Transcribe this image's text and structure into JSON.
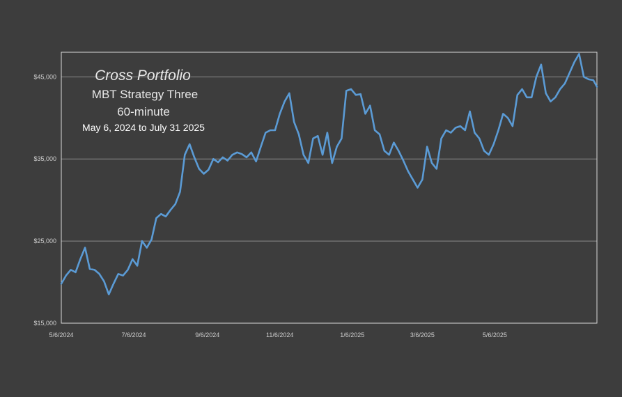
{
  "chart_data": {
    "type": "line",
    "title": "Cross Portfolio",
    "subtitle_lines": [
      "MBT Strategy Three",
      "60-minute",
      "May 6, 2024 to July 31 2025"
    ],
    "xlabel": "",
    "ylabel": "",
    "x_ticks": [
      "5/6/2024",
      "7/6/2024",
      "9/6/2024",
      "11/6/2024",
      "1/6/2025",
      "3/6/2025",
      "5/6/2025"
    ],
    "x_tick_dates": [
      "2024-05-06",
      "2024-07-06",
      "2024-09-06",
      "2024-11-06",
      "2025-01-06",
      "2025-03-06",
      "2025-05-06"
    ],
    "xlim": [
      "2024-05-06",
      "2025-07-31"
    ],
    "y_ticks": [
      15000,
      25000,
      35000,
      45000
    ],
    "y_tick_labels": [
      "$15,000",
      "$25,000",
      "$35,000",
      "$45,000"
    ],
    "ylim": [
      15000,
      48000
    ],
    "grid": true,
    "colors": {
      "background": "#3d3d3d",
      "plot_border": "#d9d9d9",
      "gridline": "#8c8c8c",
      "line": "#5b9bd5"
    },
    "series": [
      {
        "x": [
          "2024-05-06",
          "2024-05-10",
          "2024-05-14",
          "2024-05-18",
          "2024-05-22",
          "2024-05-26",
          "2024-05-30",
          "2024-06-03",
          "2024-06-07",
          "2024-06-11",
          "2024-06-15",
          "2024-06-19",
          "2024-06-23",
          "2024-06-27",
          "2024-07-01",
          "2024-07-05",
          "2024-07-09",
          "2024-07-13",
          "2024-07-17",
          "2024-07-21",
          "2024-07-25",
          "2024-07-29",
          "2024-08-02",
          "2024-08-06",
          "2024-08-10",
          "2024-08-14",
          "2024-08-18",
          "2024-08-22",
          "2024-08-26",
          "2024-08-30",
          "2024-09-03",
          "2024-09-07",
          "2024-09-11",
          "2024-09-15",
          "2024-09-19",
          "2024-09-23",
          "2024-09-27",
          "2024-10-01",
          "2024-10-05",
          "2024-10-09",
          "2024-10-13",
          "2024-10-17",
          "2024-10-21",
          "2024-10-25",
          "2024-10-29",
          "2024-11-02",
          "2024-11-06",
          "2024-11-10",
          "2024-11-14",
          "2024-11-18",
          "2024-11-22",
          "2024-11-26",
          "2024-11-30",
          "2024-12-04",
          "2024-12-08",
          "2024-12-12",
          "2024-12-16",
          "2024-12-20",
          "2024-12-24",
          "2024-12-28",
          "2025-01-01",
          "2025-01-05",
          "2025-01-09",
          "2025-01-13",
          "2025-01-17",
          "2025-01-21",
          "2025-01-25",
          "2025-01-29",
          "2025-02-02",
          "2025-02-06",
          "2025-02-10",
          "2025-02-14",
          "2025-02-18",
          "2025-02-22",
          "2025-02-26",
          "2025-03-02",
          "2025-03-06",
          "2025-03-10",
          "2025-03-14",
          "2025-03-18",
          "2025-03-22",
          "2025-03-26",
          "2025-03-30",
          "2025-04-03",
          "2025-04-07",
          "2025-04-11",
          "2025-04-15",
          "2025-04-19",
          "2025-04-23",
          "2025-04-27",
          "2025-05-01",
          "2025-05-05",
          "2025-05-09",
          "2025-05-13",
          "2025-05-17",
          "2025-05-21",
          "2025-05-25",
          "2025-05-29",
          "2025-06-02",
          "2025-06-06",
          "2025-06-10",
          "2025-06-14",
          "2025-06-18",
          "2025-06-22",
          "2025-06-26",
          "2025-06-30",
          "2025-07-04",
          "2025-07-08",
          "2025-07-12",
          "2025-07-16",
          "2025-07-20",
          "2025-07-24",
          "2025-07-28",
          "2025-07-31"
        ],
        "values": [
          19800,
          20800,
          21500,
          21200,
          22800,
          24200,
          21600,
          21500,
          21000,
          20100,
          18500,
          19800,
          21000,
          20800,
          21500,
          22800,
          22000,
          25000,
          24200,
          25200,
          27800,
          28300,
          28000,
          28800,
          29500,
          31000,
          35500,
          36800,
          35200,
          33800,
          33200,
          33700,
          35000,
          34600,
          35200,
          34800,
          35500,
          35800,
          35600,
          35200,
          35800,
          34700,
          36500,
          38200,
          38500,
          38500,
          40500,
          42000,
          43000,
          39500,
          38000,
          35500,
          34500,
          37500,
          37800,
          35500,
          38200,
          34500,
          36500,
          37500,
          43300,
          43500,
          42800,
          42900,
          40500,
          41500,
          38500,
          38000,
          36000,
          35500,
          37000,
          36000,
          34800,
          33500,
          32500,
          31500,
          32500,
          36500,
          34500,
          33800,
          37500,
          38500,
          38200,
          38800,
          39000,
          38500,
          40800,
          38200,
          37500,
          36000,
          35500,
          36800,
          38500,
          40500,
          40000,
          39000,
          42800,
          43500,
          42500,
          42500,
          45000,
          46500,
          43000,
          42000,
          42500,
          43500,
          44200,
          45500,
          46800,
          47800,
          45000,
          44700,
          44600,
          43800
        ]
      }
    ]
  }
}
